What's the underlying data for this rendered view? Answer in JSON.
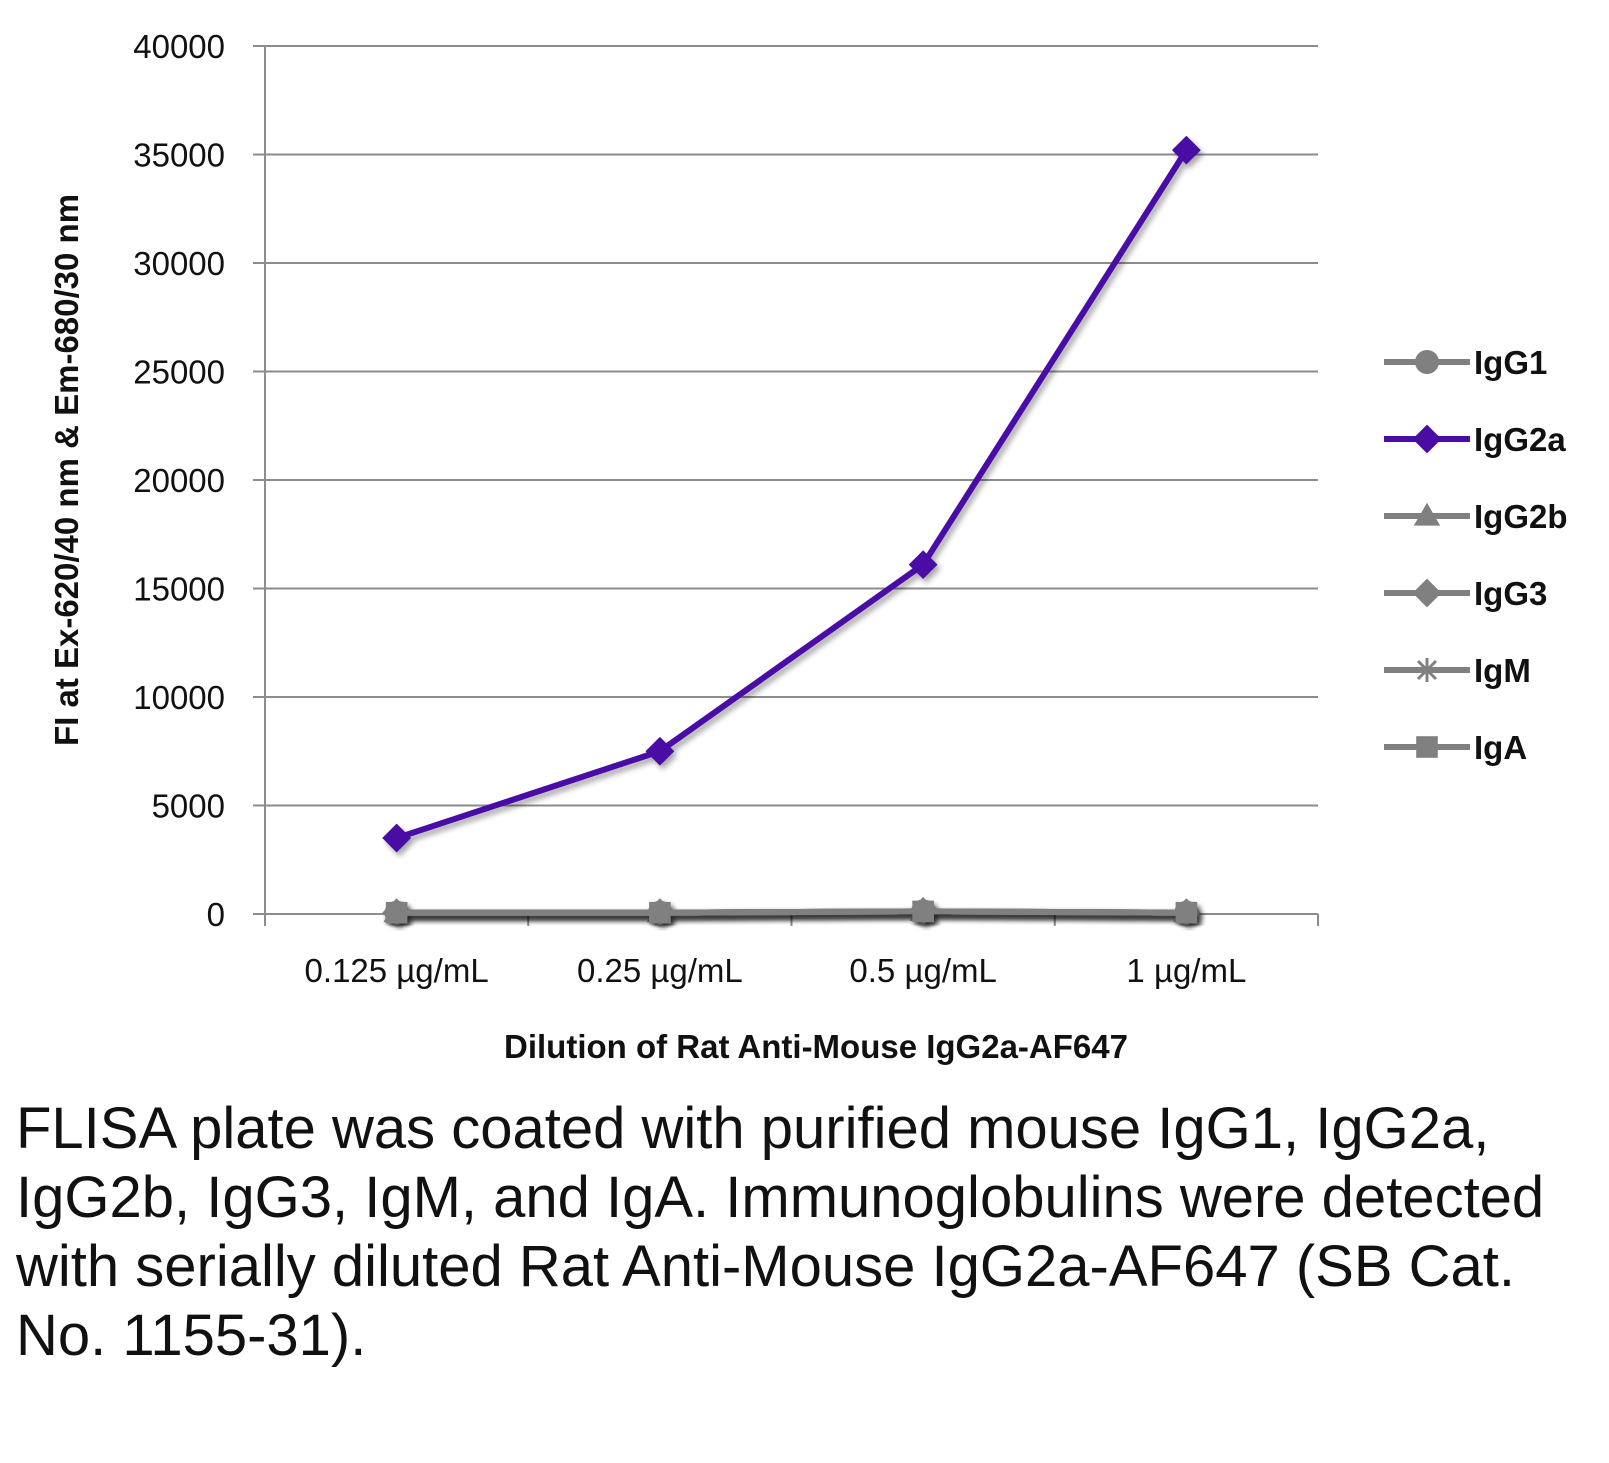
{
  "chart_data": {
    "type": "line",
    "xlabel": "Dilution of Rat Anti-Mouse IgG2a-AF647",
    "ylabel": "FI at Ex-620/40 nm & Em-680/30 nm",
    "categories": [
      "0.125 µg/mL",
      "0.25 µg/mL",
      "0.5 µg/mL",
      "1 µg/mL"
    ],
    "ylim": [
      0,
      40000
    ],
    "yticks": [
      0,
      5000,
      10000,
      15000,
      20000,
      25000,
      30000,
      35000,
      40000
    ],
    "grid": true,
    "legend_position": "right",
    "series": [
      {
        "name": "IgG1",
        "values": [
          60,
          60,
          120,
          60
        ],
        "color": "#808080",
        "marker": "circle"
      },
      {
        "name": "IgG2a",
        "values": [
          3500,
          7500,
          16100,
          35200
        ],
        "color": "#4a0ca6",
        "marker": "diamond"
      },
      {
        "name": "IgG2b",
        "values": [
          60,
          60,
          120,
          60
        ],
        "color": "#808080",
        "marker": "triangle"
      },
      {
        "name": "IgG3",
        "values": [
          60,
          60,
          120,
          60
        ],
        "color": "#808080",
        "marker": "diamond"
      },
      {
        "name": "IgM",
        "values": [
          60,
          60,
          120,
          60
        ],
        "color": "#808080",
        "marker": "asterisk"
      },
      {
        "name": "IgA",
        "values": [
          60,
          60,
          120,
          60
        ],
        "color": "#808080",
        "marker": "square"
      }
    ]
  },
  "caption": "FLISA plate was coated with purified mouse IgG1, IgG2a, IgG2b, IgG3, IgM, and IgA. Immunoglobulins were detected with serially diluted Rat Anti-Mouse IgG2a-AF647 (SB Cat. No. 1155-31)."
}
